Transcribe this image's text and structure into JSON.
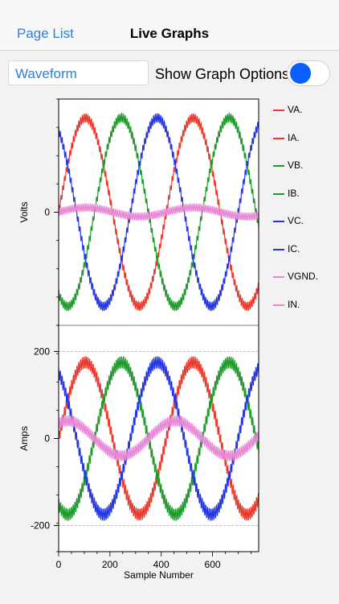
{
  "nav": {
    "back_label": "Page List",
    "title": "Live Graphs"
  },
  "toolbar": {
    "selected_view": "Waveform",
    "options_label": "Show Graph Options",
    "options_on": true
  },
  "colors": {
    "accent": "#2f7fd6",
    "toggle_on": "#0a60ff",
    "VA": "#e8392c",
    "IA": "#e8392c",
    "VB": "#1f9a2a",
    "IB": "#1f9a2a",
    "VC": "#2336e0",
    "IC": "#2336e0",
    "VGND": "#e889d8",
    "IN": "#e889d8"
  },
  "legend": [
    {
      "label": "VA.",
      "color": "#e8392c"
    },
    {
      "label": "IA.",
      "color": "#e8392c"
    },
    {
      "label": "VB.",
      "color": "#1f9a2a"
    },
    {
      "label": "IB.",
      "color": "#1f9a2a"
    },
    {
      "label": "VC.",
      "color": "#2336e0"
    },
    {
      "label": "IC.",
      "color": "#2336e0"
    },
    {
      "label": "VGND.",
      "color": "#e889d8"
    },
    {
      "label": "IN.",
      "color": "#e889d8"
    }
  ],
  "chart_data": [
    {
      "type": "line",
      "ylabel": "Volts",
      "xlim": [
        0,
        780
      ],
      "ylim": [
        -300,
        300
      ],
      "yticks": [
        0
      ],
      "ytick_labels": [
        "0"
      ],
      "grid": false,
      "series": [
        {
          "name": "VA.",
          "color": "#e8392c",
          "amplitude": 250,
          "phase_deg": 0,
          "ripple": 12
        },
        {
          "name": "VB.",
          "color": "#1f9a2a",
          "amplitude": 250,
          "phase_deg": -120,
          "ripple": 12
        },
        {
          "name": "VC.",
          "color": "#2336e0",
          "amplitude": 250,
          "phase_deg": 120,
          "ripple": 12
        },
        {
          "name": "VGND.",
          "color": "#e889d8",
          "amplitude": 12,
          "phase_deg": 0,
          "ripple": 10
        }
      ],
      "period_samples": 420
    },
    {
      "type": "line",
      "ylabel": "Amps",
      "xlabel": "Sample Number",
      "xlim": [
        0,
        780
      ],
      "ylim": [
        -260,
        260
      ],
      "xticks": [
        0,
        200,
        400,
        600
      ],
      "xtick_labels": [
        "0",
        "200",
        "400",
        "600"
      ],
      "yticks": [
        200,
        0,
        -200
      ],
      "ytick_labels": [
        "200",
        "0",
        "-200"
      ],
      "grid": true,
      "series": [
        {
          "name": "IA.",
          "color": "#e8392c",
          "amplitude": 175,
          "phase_deg": 0,
          "ripple": 14
        },
        {
          "name": "IB.",
          "color": "#1f9a2a",
          "amplitude": 175,
          "phase_deg": -120,
          "ripple": 14
        },
        {
          "name": "IC.",
          "color": "#2336e0",
          "amplitude": 175,
          "phase_deg": 120,
          "ripple": 14
        },
        {
          "name": "IN.",
          "color": "#e889d8",
          "amplitude": 40,
          "phase_deg": 60,
          "ripple": 12
        }
      ],
      "period_samples": 420
    }
  ]
}
